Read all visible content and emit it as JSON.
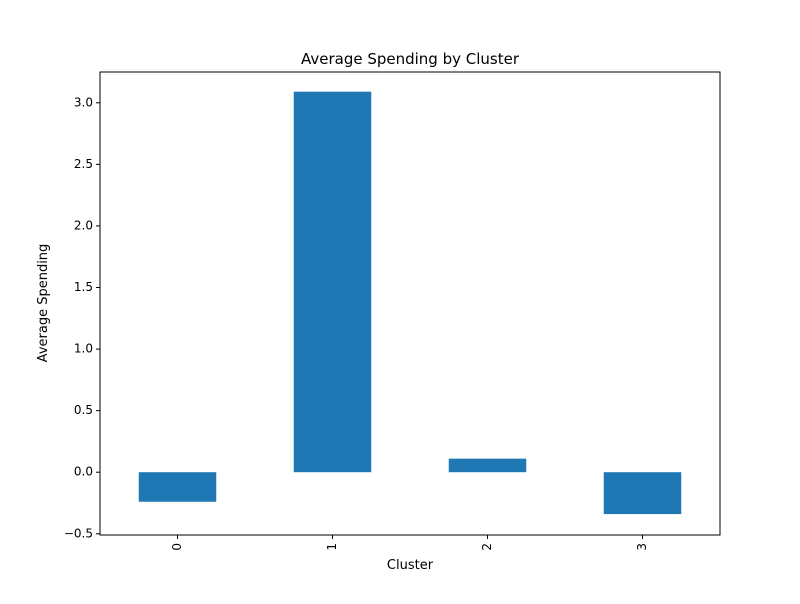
{
  "chart_data": {
    "type": "bar",
    "title": "Average Spending by Cluster",
    "xlabel": "Cluster",
    "ylabel": "Average Spending",
    "categories": [
      "0",
      "1",
      "2",
      "3"
    ],
    "values": [
      -0.24,
      3.09,
      0.11,
      -0.34
    ],
    "ylim": [
      -0.51,
      3.25
    ],
    "yticks": [
      -0.5,
      0.0,
      0.5,
      1.0,
      1.5,
      2.0,
      2.5,
      3.0
    ],
    "ytick_labels": [
      "−0.5",
      "0.0",
      "0.5",
      "1.0",
      "1.5",
      "2.0",
      "2.5",
      "3.0"
    ],
    "x_tick_rotation": 90,
    "bar_color": "#1f77b4",
    "grid": false,
    "legend": "none"
  }
}
